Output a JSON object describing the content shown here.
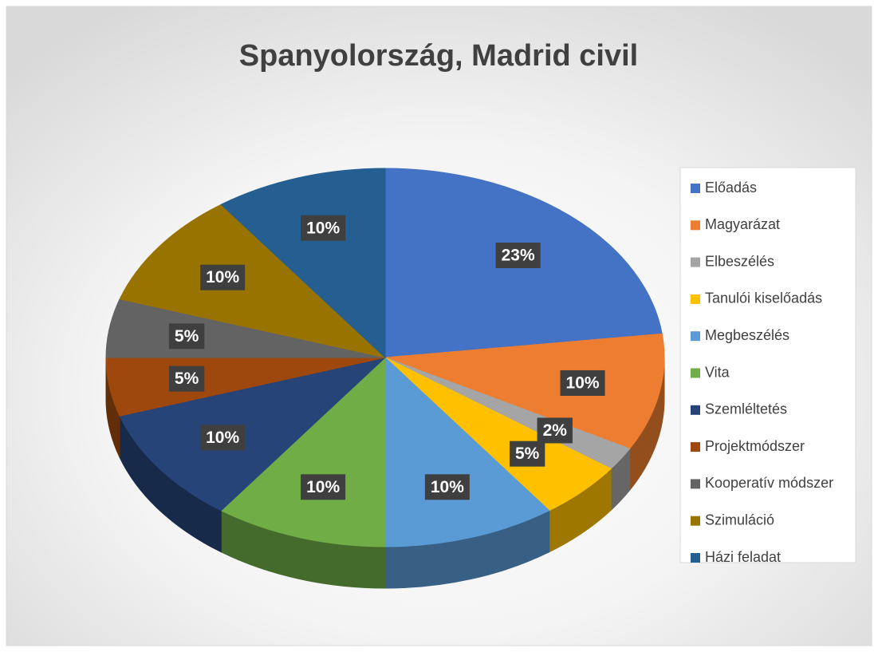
{
  "chart_data": {
    "type": "pie3d",
    "title": "Spanyolország, Madrid civil",
    "categories": [
      "Előadás",
      "Magyarázat",
      "Elbeszélés",
      "Tanulói kiselőadás",
      "Megbeszélés",
      "Vita",
      "Szemléltetés",
      "Projektmódszer",
      "Kooperatív módszer",
      "Szimuláció",
      "Házi feladat"
    ],
    "values": [
      23,
      10,
      2,
      5,
      10,
      10,
      10,
      5,
      5,
      10,
      10
    ],
    "value_labels": [
      "23%",
      "10%",
      "2%",
      "5%",
      "10%",
      "10%",
      "10%",
      "5%",
      "5%",
      "10%",
      "10%"
    ],
    "colors": [
      "#4472c4",
      "#ed7d31",
      "#a5a5a5",
      "#ffc000",
      "#5b9bd5",
      "#70ad47",
      "#264478",
      "#9e480e",
      "#636363",
      "#997300",
      "#255e91"
    ],
    "legend": "right"
  }
}
